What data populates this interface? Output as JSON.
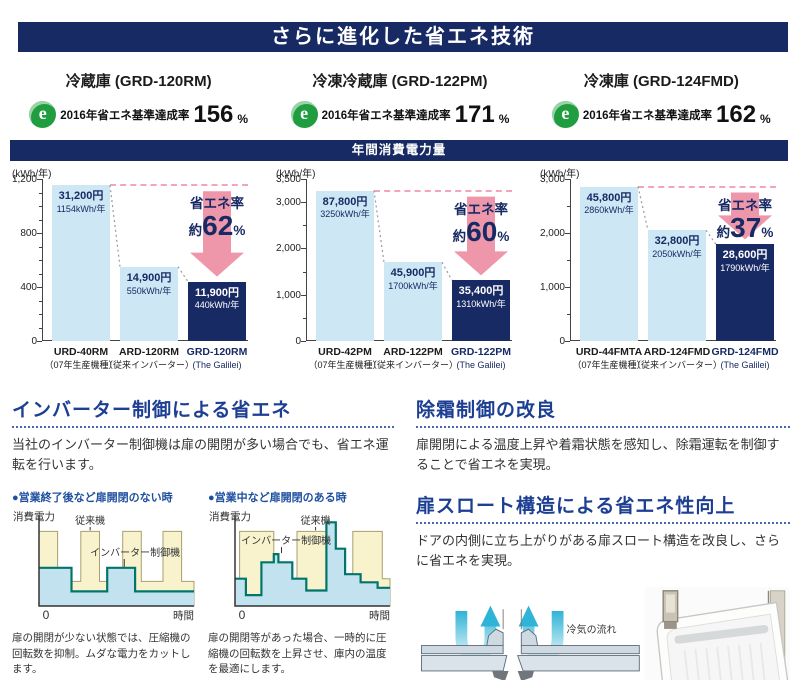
{
  "banner": {
    "title": "さらに進化した省エネ技術"
  },
  "products": [
    {
      "name": "冷蔵庫 (GRD-120RM)",
      "icon": "e-energy-mark",
      "e": "e",
      "rating_label": "2016年省エネ基準達成率",
      "rating_value": "156",
      "rating_unit": "%"
    },
    {
      "name": "冷凍冷蔵庫 (GRD-122PM)",
      "icon": "e-energy-mark",
      "e": "e",
      "rating_label": "2016年省エネ基準達成率",
      "rating_value": "171",
      "rating_unit": "%"
    },
    {
      "name": "冷凍庫 (GRD-124FMD)",
      "icon": "e-energy-mark",
      "e": "e",
      "rating_label": "2016年省エネ基準達成率",
      "rating_value": "162",
      "rating_unit": "%"
    }
  ],
  "band_title": "年間消費電力量",
  "chart_data": {
    "main_charts": [
      {
        "type": "bar",
        "product": "冷蔵庫 (GRD-120RM)",
        "unit_label": "(kWh/年)",
        "ylim": [
          0,
          1200
        ],
        "minor_step": 100,
        "yticks": [
          {
            "v": 0,
            "label": "0"
          },
          {
            "v": 400,
            "label": "400"
          },
          {
            "v": 800,
            "label": "800"
          },
          {
            "v": 1200,
            "label": "1,200"
          }
        ],
        "bars": [
          {
            "model": "URD-40RM",
            "note": "（07年生産機種）",
            "kwh": 1154,
            "price": "31,200円",
            "kwh_label": "1154kWh/年",
            "highlight": false
          },
          {
            "model": "ARD-120RM",
            "note": "（従来インバーター）",
            "kwh": 550,
            "price": "14,900円",
            "kwh_label": "550kWh/年",
            "highlight": false
          },
          {
            "model": "GRD-120RM",
            "note": "(The Galilei)",
            "kwh": 440,
            "price": "11,900円",
            "kwh_label": "440kWh/年",
            "highlight": true
          }
        ],
        "savings": {
          "label": "省エネ率",
          "approx": "約",
          "value": "62",
          "unit": "%"
        }
      },
      {
        "type": "bar",
        "product": "冷凍冷蔵庫 (GRD-122PM)",
        "unit_label": "(kWh/年)",
        "ylim": [
          0,
          3500
        ],
        "minor_step": 500,
        "yticks": [
          {
            "v": 0,
            "label": "0"
          },
          {
            "v": 1000,
            "label": "1,000"
          },
          {
            "v": 2000,
            "label": "2,000"
          },
          {
            "v": 3000,
            "label": "3,000"
          },
          {
            "v": 3500,
            "label": "3,500"
          }
        ],
        "bars": [
          {
            "model": "URD-42PM",
            "note": "（07年生産機種）",
            "kwh": 3250,
            "price": "87,800円",
            "kwh_label": "3250kWh/年",
            "highlight": false
          },
          {
            "model": "ARD-122PM",
            "note": "（従来インバーター）",
            "kwh": 1700,
            "price": "45,900円",
            "kwh_label": "1700kWh/年",
            "highlight": false
          },
          {
            "model": "GRD-122PM",
            "note": "(The Galilei)",
            "kwh": 1310,
            "price": "35,400円",
            "kwh_label": "1310kWh/年",
            "highlight": true
          }
        ],
        "savings": {
          "label": "省エネ率",
          "approx": "約",
          "value": "60",
          "unit": "%"
        }
      },
      {
        "type": "bar",
        "product": "冷凍庫 (GRD-124FMD)",
        "unit_label": "(kWh/年)",
        "ylim": [
          0,
          3000
        ],
        "minor_step": 500,
        "yticks": [
          {
            "v": 0,
            "label": "0"
          },
          {
            "v": 1000,
            "label": "1,000"
          },
          {
            "v": 2000,
            "label": "2,000"
          },
          {
            "v": 3000,
            "label": "3,000"
          }
        ],
        "bars": [
          {
            "model": "URD-44FMTA",
            "note": "（07年生産機種）",
            "kwh": 2860,
            "price": "45,800円",
            "kwh_label": "2860kWh/年",
            "highlight": false
          },
          {
            "model": "ARD-124FMD",
            "note": "（従来インバーター）",
            "kwh": 2050,
            "price": "32,800円",
            "kwh_label": "2050kWh/年",
            "highlight": false
          },
          {
            "model": "GRD-124FMD",
            "note": "(The Galilei)",
            "kwh": 1790,
            "price": "28,600円",
            "kwh_label": "1790kWh/年",
            "highlight": true
          }
        ],
        "savings": {
          "label": "省エネ率",
          "approx": "約",
          "value": "37",
          "unit": "%"
        }
      }
    ],
    "inverter_subcharts": [
      {
        "type": "line",
        "title": "●営業終了後など扉開閉のない時",
        "ylabel": "消費電力",
        "xlabel": "時間",
        "origin": "0",
        "series": [
          {
            "name": "従来機"
          },
          {
            "name": "インバーター制御機"
          }
        ],
        "conventional": [
          [
            0,
            0.82
          ],
          [
            0.12,
            0.82
          ],
          [
            0.12,
            0.27
          ],
          [
            0.27,
            0.27
          ],
          [
            0.27,
            0.82
          ],
          [
            0.39,
            0.82
          ],
          [
            0.39,
            0.27
          ],
          [
            0.54,
            0.27
          ],
          [
            0.54,
            0.82
          ],
          [
            0.66,
            0.82
          ],
          [
            0.66,
            0.27
          ],
          [
            0.8,
            0.27
          ],
          [
            0.8,
            0.82
          ],
          [
            0.92,
            0.82
          ],
          [
            0.92,
            0.27
          ],
          [
            1,
            0.27
          ]
        ],
        "inverter": [
          [
            0,
            0.42
          ],
          [
            0.21,
            0.42
          ],
          [
            0.21,
            0.16
          ],
          [
            0.44,
            0.16
          ],
          [
            0.44,
            0.42
          ],
          [
            0.62,
            0.42
          ],
          [
            0.62,
            0.16
          ],
          [
            1,
            0.16
          ]
        ],
        "conv_pointer_x": 0.33,
        "conv_top": 0.82,
        "inv_label_x": 0.62,
        "inv_label_y": 0.55,
        "inv_pointer_x": 0.55,
        "inv_pointer_top": 0.42,
        "caption": "扉の開閉が少ない状態では、圧縮機の回転数を抑制。ムダな電力をカットします。"
      },
      {
        "type": "line",
        "title": "●営業中など扉開閉のある時",
        "ylabel": "消費電力",
        "xlabel": "時間",
        "origin": "0",
        "series": [
          {
            "name": "従来機"
          },
          {
            "name": "インバーター制御機"
          }
        ],
        "conventional": [
          [
            0,
            0.25
          ],
          [
            0.03,
            0.25
          ],
          [
            0.03,
            0.82
          ],
          [
            0.25,
            0.82
          ],
          [
            0.25,
            0.25
          ],
          [
            0.4,
            0.25
          ],
          [
            0.4,
            0.82
          ],
          [
            0.62,
            0.82
          ],
          [
            0.62,
            0.25
          ],
          [
            0.76,
            0.25
          ],
          [
            0.76,
            0.82
          ],
          [
            0.95,
            0.82
          ],
          [
            0.95,
            0.3
          ],
          [
            1,
            0.3
          ]
        ],
        "inverter": [
          [
            0,
            0.3
          ],
          [
            0.07,
            0.3
          ],
          [
            0.07,
            0.12
          ],
          [
            0.17,
            0.12
          ],
          [
            0.17,
            0.48
          ],
          [
            0.25,
            0.48
          ],
          [
            0.25,
            0.57
          ],
          [
            0.28,
            0.57
          ],
          [
            0.28,
            0.48
          ],
          [
            0.37,
            0.48
          ],
          [
            0.37,
            0.3
          ],
          [
            0.46,
            0.3
          ],
          [
            0.46,
            0.17
          ],
          [
            0.59,
            0.17
          ],
          [
            0.59,
            0.92
          ],
          [
            0.65,
            0.92
          ],
          [
            0.65,
            0.63
          ],
          [
            0.71,
            0.63
          ],
          [
            0.71,
            0.35
          ],
          [
            0.81,
            0.35
          ],
          [
            0.81,
            0.26
          ],
          [
            0.92,
            0.26
          ],
          [
            0.92,
            0.2
          ],
          [
            1,
            0.2
          ]
        ],
        "conv_pointer_x": 0.52,
        "conv_top": 0.82,
        "inv_label_x": 0.33,
        "inv_label_y": 0.68,
        "inv_pointer_x": 0.3,
        "inv_pointer_top": 0.57,
        "caption": "扉の開閉等があった場合、一時的に圧縮機の回転数を上昇させ、庫内の温度を最適にします。"
      }
    ]
  },
  "sections": {
    "inverter": {
      "title": "インバーター制御による省エネ",
      "body": "当社のインバーター制御機は扉の開閉が多い場合でも、省エネ運転を行います。"
    },
    "defrost": {
      "title": "除霜制御の改良",
      "body": "扉開閉による温度上昇や着霜状態を感知し、除霜運転を制御することで省エネを実現。"
    },
    "throat": {
      "title": "扉スロート構造による省エネ性向上",
      "body": "ドアの内側に立ち上がりがある扉スロート構造を改良し、さらに省エネを実現。",
      "flow_label": "冷気の流れ"
    }
  },
  "colors": {
    "navy": "#182a63",
    "light_bar": "#cde7f5",
    "pink_arrow": "#ee8fa4",
    "dashed_pink": "#f2a6b8",
    "heading_blue": "#1c3f93",
    "green_e": "#1f9d3f",
    "teal_line": "#00766b",
    "teal_fill": "#c3e2ef",
    "yellow_fill": "#f8f3cd",
    "yellow_edge": "#a89f6e"
  }
}
